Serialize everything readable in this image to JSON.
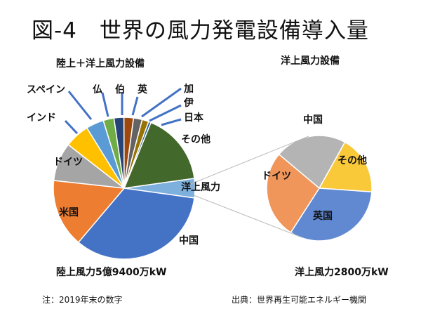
{
  "title": "図-4　世界の風力発電設備導入量",
  "note": "注：2019年末の数字",
  "source": "出典：世界再生可能エネルギー機関",
  "chart_data": [
    {
      "type": "pie",
      "title": "陸上＋洋上風力設備",
      "caption": "陸上風力5億9400万kW",
      "slices": [
        {
          "label": "洋上風力",
          "value": 4.7,
          "color": "#7EB0DE"
        },
        {
          "label": "中国",
          "value": 36,
          "color": "#4472C4"
        },
        {
          "label": "米国",
          "value": 16.5,
          "color": "#ED7D31"
        },
        {
          "label": "ドイツ",
          "value": 9.3,
          "color": "#A5A5A5"
        },
        {
          "label": "インド",
          "value": 6,
          "color": "#FFC000"
        },
        {
          "label": "スペイン",
          "value": 4.3,
          "color": "#5B9BD5"
        },
        {
          "label": "仏",
          "value": 2.6,
          "color": "#70AD47"
        },
        {
          "label": "伯",
          "value": 2.4,
          "color": "#264478"
        },
        {
          "label": "英",
          "value": 2.3,
          "color": "#9E480E"
        },
        {
          "label": "加",
          "value": 2.1,
          "color": "#636363"
        },
        {
          "label": "伊",
          "value": 1.6,
          "color": "#997300"
        },
        {
          "label": "日本",
          "value": 0.6,
          "color": "#255E91"
        },
        {
          "label": "その他",
          "value": 17.6,
          "color": "#43682B"
        }
      ]
    },
    {
      "type": "pie",
      "title": "洋上風力設備",
      "caption": "洋上風力2800万kW",
      "slices": [
        {
          "label": "中国",
          "value": 22,
          "color": "#B4B4B4"
        },
        {
          "label": "その他",
          "value": 18,
          "color": "#F9C93A"
        },
        {
          "label": "英国",
          "value": 33,
          "color": "#6089D2"
        },
        {
          "label": "ドイツ",
          "value": 27,
          "color": "#F0965A"
        }
      ]
    }
  ]
}
